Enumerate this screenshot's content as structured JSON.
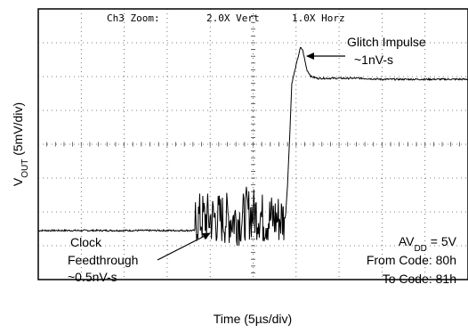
{
  "chart_data": {
    "type": "line",
    "header": {
      "channel": "Ch3 Zoom:",
      "vert": "2.0X Vert",
      "horz": "1.0X Horz"
    },
    "xlabel": "Time (5µs/div)",
    "ylabel": {
      "main": "V",
      "sub": "OUT",
      "rest": " (5mV/div)"
    },
    "x_divisions": 10,
    "y_divisions": 8,
    "xlim": [
      0,
      10
    ],
    "ylim": [
      0,
      8
    ],
    "grid": true,
    "series": [
      {
        "x": [
          0,
          1,
          2,
          3,
          3.7,
          3.9,
          4.2,
          4.5,
          4.8,
          5.1,
          5.4,
          5.6,
          5.75,
          5.8,
          5.85,
          5.9,
          6.05,
          6.1,
          6.15,
          6.2,
          6.25,
          6.35,
          6.5,
          6.7,
          7,
          7.5,
          8,
          9,
          10
        ],
        "y": [
          1.45,
          1.45,
          1.45,
          1.45,
          1.45,
          2.0,
          1.2,
          2.3,
          1.4,
          2.2,
          1.5,
          2.0,
          1.8,
          2.8,
          4.2,
          5.8,
          6.6,
          6.85,
          6.8,
          6.5,
          6.2,
          6.0,
          5.95,
          5.95,
          5.95,
          5.95,
          5.92,
          5.92,
          5.92
        ]
      }
    ],
    "annotations": {
      "glitch_line1": "Glitch Impulse",
      "glitch_line2": "~1nV-s",
      "clock_line1": "Clock",
      "clock_line2": "Feedthrough",
      "clock_line3": "~0.5nV-s",
      "av_main": "AV",
      "av_sub": "DD",
      "av_rest": " = 5V",
      "from_code": "From Code: 80h",
      "to_code": "To Code: 81h"
    }
  }
}
